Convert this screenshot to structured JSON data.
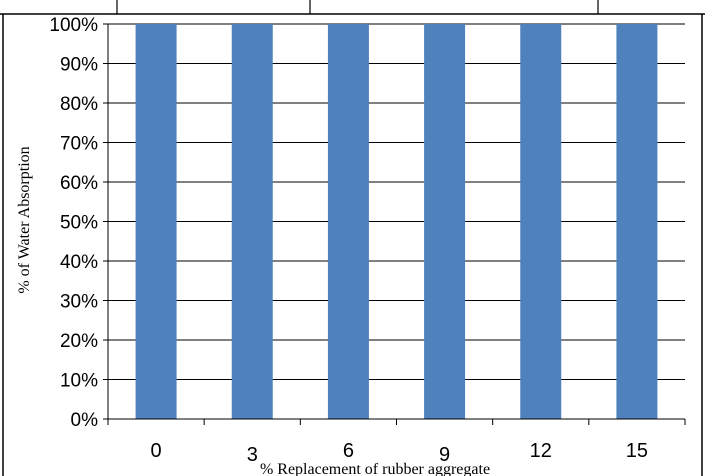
{
  "chart_data": {
    "type": "bar",
    "categories": [
      "0",
      "3",
      "6",
      "9",
      "12",
      "15"
    ],
    "values": [
      100,
      100,
      100,
      100,
      100,
      100
    ],
    "ylim": [
      0,
      100
    ],
    "y_ticks": [
      "0%",
      "10%",
      "20%",
      "30%",
      "40%",
      "50%",
      "60%",
      "70%",
      "80%",
      "90%",
      "100%"
    ],
    "xlabel": "% Replacement of  rubber aggregate",
    "ylabel": "% of Water Absorption",
    "grid": true,
    "legend": "none"
  },
  "colors": {
    "bar": "#4f81bd",
    "grid": "#000000",
    "border": "#000000"
  }
}
